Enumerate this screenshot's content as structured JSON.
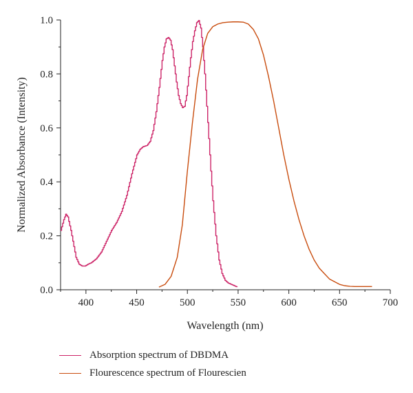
{
  "chart_data": {
    "type": "line",
    "xlabel": "Wavelength (nm)",
    "ylabel": "Normalized Absorbance (Intensity)",
    "xlim": [
      375,
      700
    ],
    "ylim": [
      0,
      1.0
    ],
    "x_ticks": [
      400,
      450,
      500,
      550,
      600,
      650,
      700
    ],
    "y_ticks": [
      0.0,
      0.2,
      0.4,
      0.6,
      0.8,
      1.0
    ],
    "x_tick_labels": [
      "400",
      "450",
      "500",
      "550",
      "600",
      "650",
      "700"
    ],
    "y_tick_labels": [
      "0.0",
      "0.2",
      "0.4",
      "0.6",
      "0.8",
      "1.0"
    ],
    "grid": false,
    "legend_position": "bottom",
    "series": [
      {
        "name": "Absorption spectrum of DBDMA",
        "color": "#cc2266",
        "x": [
          375,
          378,
          380,
          382,
          385,
          388,
          390,
          393,
          396,
          399,
          402,
          405,
          410,
          415,
          420,
          425,
          430,
          435,
          440,
          445,
          450,
          453,
          456,
          460,
          463,
          466,
          469,
          472,
          475,
          477,
          479,
          481,
          483,
          485,
          487,
          489,
          491,
          493,
          495,
          497,
          499,
          501,
          503,
          505,
          507,
          509,
          511,
          513,
          515,
          517,
          519,
          521,
          523,
          525,
          528,
          531,
          534,
          537,
          540,
          543,
          546,
          549
        ],
        "y": [
          0.22,
          0.26,
          0.28,
          0.27,
          0.22,
          0.16,
          0.12,
          0.095,
          0.088,
          0.088,
          0.095,
          0.1,
          0.115,
          0.14,
          0.18,
          0.22,
          0.25,
          0.29,
          0.35,
          0.43,
          0.5,
          0.52,
          0.53,
          0.535,
          0.55,
          0.59,
          0.66,
          0.75,
          0.85,
          0.9,
          0.93,
          0.935,
          0.925,
          0.89,
          0.83,
          0.77,
          0.72,
          0.69,
          0.675,
          0.68,
          0.72,
          0.79,
          0.86,
          0.92,
          0.96,
          0.99,
          0.998,
          0.97,
          0.9,
          0.8,
          0.68,
          0.56,
          0.44,
          0.33,
          0.2,
          0.11,
          0.06,
          0.035,
          0.025,
          0.02,
          0.015,
          0.01
        ],
        "step": true
      },
      {
        "name": "Flourescence spectrum of Flourescien",
        "color": "#c84b0c",
        "x": [
          472,
          478,
          484,
          490,
          495,
          500,
          505,
          510,
          515,
          520,
          525,
          530,
          535,
          540,
          545,
          550,
          555,
          560,
          565,
          570,
          575,
          580,
          585,
          590,
          595,
          600,
          605,
          610,
          615,
          620,
          625,
          630,
          635,
          640,
          645,
          650,
          655,
          660,
          665,
          670,
          675,
          682
        ],
        "y": [
          0.01,
          0.02,
          0.05,
          0.12,
          0.24,
          0.44,
          0.62,
          0.78,
          0.89,
          0.95,
          0.975,
          0.985,
          0.99,
          0.992,
          0.993,
          0.993,
          0.992,
          0.985,
          0.965,
          0.93,
          0.87,
          0.79,
          0.7,
          0.6,
          0.5,
          0.41,
          0.33,
          0.26,
          0.2,
          0.15,
          0.11,
          0.08,
          0.06,
          0.04,
          0.03,
          0.02,
          0.015,
          0.013,
          0.012,
          0.012,
          0.012,
          0.012
        ],
        "step": false
      }
    ]
  }
}
